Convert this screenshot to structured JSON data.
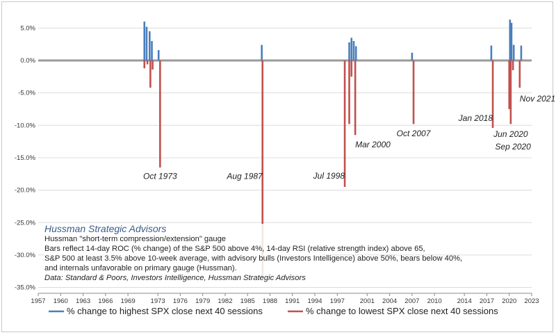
{
  "chart_data": {
    "type": "bar",
    "x_ticks": [
      "1957",
      "1960",
      "1963",
      "1966",
      "1969",
      "1973",
      "1976",
      "1979",
      "1982",
      "1985",
      "1988",
      "1991",
      "1994",
      "1997",
      "2001",
      "2004",
      "2007",
      "2010",
      "2014",
      "2017",
      "2020",
      "2023"
    ],
    "x_range": [
      1957,
      2023
    ],
    "y_ticks": [
      "5.0%",
      "0.0%",
      "-5.0%",
      "-10.0%",
      "-15.0%",
      "-20.0%",
      "-25.0%",
      "-30.0%",
      "-35.0%"
    ],
    "y_range": [
      -35,
      7
    ],
    "grid": "horizontal",
    "legend_placement": "bottom",
    "series": [
      {
        "name": "% change to highest SPX close next 40 sessions",
        "color": "#4a7ebb",
        "points": [
          {
            "x": 1971.2,
            "y": 6.0
          },
          {
            "x": 1971.5,
            "y": 5.2
          },
          {
            "x": 1971.9,
            "y": 4.5
          },
          {
            "x": 1972.2,
            "y": 3.0
          },
          {
            "x": 1973.1,
            "y": 1.6
          },
          {
            "x": 1986.9,
            "y": 2.4
          },
          {
            "x": 1998.6,
            "y": 2.8
          },
          {
            "x": 1998.9,
            "y": 3.5
          },
          {
            "x": 1999.2,
            "y": 3.0
          },
          {
            "x": 1999.5,
            "y": 2.2
          },
          {
            "x": 2007.0,
            "y": 1.2
          },
          {
            "x": 2017.6,
            "y": 2.3
          },
          {
            "x": 2020.1,
            "y": 6.3
          },
          {
            "x": 2020.3,
            "y": 5.8
          },
          {
            "x": 2020.6,
            "y": 2.4
          },
          {
            "x": 2021.6,
            "y": 2.3
          }
        ]
      },
      {
        "name": "% change to lowest SPX close next 40 sessions",
        "color": "#c0504d",
        "points": [
          {
            "x": 1971.2,
            "y": -1.2
          },
          {
            "x": 1971.6,
            "y": -0.6
          },
          {
            "x": 1972.0,
            "y": -4.2
          },
          {
            "x": 1972.3,
            "y": -1.4
          },
          {
            "x": 1973.3,
            "y": -16.5
          },
          {
            "x": 1987.0,
            "y": -33.5
          },
          {
            "x": 1998.0,
            "y": -19.5
          },
          {
            "x": 1998.6,
            "y": -9.8
          },
          {
            "x": 1998.9,
            "y": -2.5
          },
          {
            "x": 1999.4,
            "y": -11.5
          },
          {
            "x": 2007.2,
            "y": -9.8
          },
          {
            "x": 2017.8,
            "y": -10.4
          },
          {
            "x": 2020.0,
            "y": -7.5
          },
          {
            "x": 2020.2,
            "y": -9.8
          },
          {
            "x": 2020.5,
            "y": -1.5
          },
          {
            "x": 2021.4,
            "y": -4.2
          }
        ]
      }
    ],
    "annotations": [
      {
        "text": "Oct 1973",
        "x": 1973.3,
        "y": -18.3,
        "align": "middle"
      },
      {
        "text": "Aug 1987",
        "x": 1987.0,
        "y": -18.3,
        "align": "end"
      },
      {
        "text": "Jul 1998",
        "x": 1998.0,
        "y": -18.2,
        "align": "end"
      },
      {
        "text": "Mar 2000",
        "x": 1999.4,
        "y": -13.4,
        "align": "start"
      },
      {
        "text": "Oct 2007",
        "x": 2007.2,
        "y": -11.7,
        "align": "middle"
      },
      {
        "text": "Jan 2018",
        "x": 2017.8,
        "y": -9.3,
        "align": "end"
      },
      {
        "text": "Jun 2020",
        "x": 2020.2,
        "y": -11.8,
        "align": "middle"
      },
      {
        "text": "Sep 2020",
        "x": 2020.5,
        "y": -13.7,
        "align": "middle"
      },
      {
        "text": "Nov 2021",
        "x": 2021.4,
        "y": -6.3,
        "align": "start"
      }
    ]
  },
  "notes": {
    "brand": "Hussman Strategic Advisors",
    "lines": [
      "Hussman \"short-term compression/extension\" gauge",
      "Bars reflect 14-day ROC (% change) of the S&P 500 above 4%, 14-day RSI (relative strength index) above 65,",
      "S&P 500 at least 3.5% above 10-week average, with advisory bulls (Investors Intelligence) above 50%, bears below 40%,",
      "and internals unfavorable on primary gauge (Hussman)."
    ],
    "source": "Data: Standard & Poors, Investors Intelligence, Hussman Strategic Advisors"
  }
}
